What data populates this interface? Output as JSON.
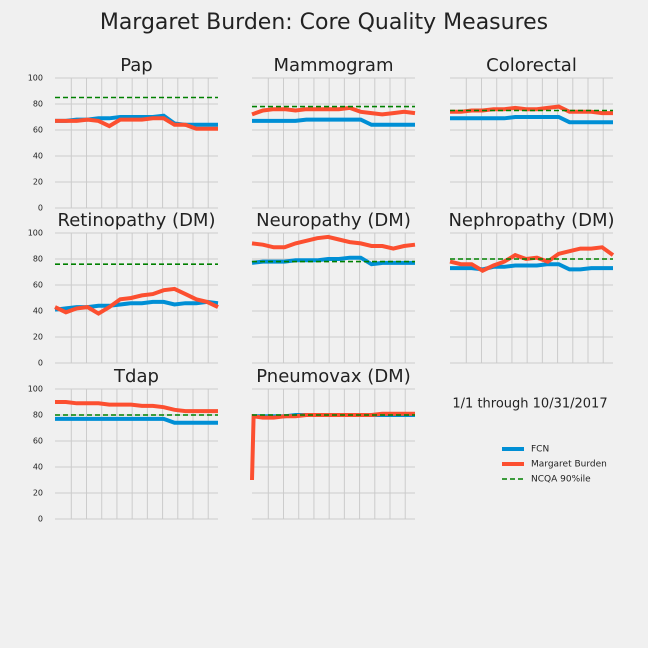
{
  "title": "Margaret Burden: Core Quality Measures",
  "annotation": "1/1 through 10/31/2017",
  "legend": [
    {
      "name": "FCN",
      "color": "#008fd5",
      "dashed": false
    },
    {
      "name": "Margaret Burden",
      "color": "#fc4f30",
      "dashed": false
    },
    {
      "name": "NCQA 90%ile",
      "color": "#008000",
      "dashed": true
    }
  ],
  "chart_data": [
    {
      "type": "line",
      "title": "Pap",
      "x": [
        0,
        20,
        40,
        60,
        80,
        100,
        120,
        140,
        160,
        180,
        200,
        220,
        240,
        260,
        280,
        300
      ],
      "xlim": [
        0,
        300
      ],
      "xticks": [
        30,
        58,
        86,
        114,
        142,
        170,
        198,
        226,
        254,
        282
      ],
      "ylim": [
        0,
        100
      ],
      "yticks": [
        0,
        20,
        40,
        60,
        80,
        100
      ],
      "grid": true,
      "benchmark": 85,
      "series": [
        {
          "values": [
            67,
            67,
            68,
            68,
            69,
            69,
            70,
            70,
            70,
            70,
            71,
            65,
            64,
            64,
            64,
            64
          ]
        },
        {
          "values": [
            67,
            67,
            67,
            68,
            67,
            63,
            68,
            68,
            68,
            69,
            69,
            64,
            64,
            61,
            61,
            61
          ]
        }
      ]
    },
    {
      "type": "line",
      "title": "Mammogram",
      "x": [
        0,
        20,
        40,
        60,
        80,
        100,
        120,
        140,
        160,
        180,
        200,
        220,
        240,
        260,
        280,
        300
      ],
      "xlim": [
        0,
        300
      ],
      "xticks": [
        30,
        58,
        86,
        114,
        142,
        170,
        198,
        226,
        254,
        282
      ],
      "ylim": [
        0,
        100
      ],
      "yticks": [
        0,
        20,
        40,
        60,
        80,
        100
      ],
      "grid": true,
      "benchmark": 78,
      "series": [
        {
          "values": [
            67,
            67,
            67,
            67,
            67,
            68,
            68,
            68,
            68,
            68,
            68,
            64,
            64,
            64,
            64,
            64
          ]
        },
        {
          "values": [
            72,
            75,
            76,
            76,
            75,
            76,
            76,
            76,
            76,
            77,
            74,
            73,
            72,
            73,
            74,
            73
          ]
        }
      ]
    },
    {
      "type": "line",
      "title": "Colorectal",
      "x": [
        0,
        20,
        40,
        60,
        80,
        100,
        120,
        140,
        160,
        180,
        200,
        220,
        240,
        260,
        280,
        300
      ],
      "xlim": [
        0,
        300
      ],
      "xticks": [
        30,
        58,
        86,
        114,
        142,
        170,
        198,
        226,
        254,
        282
      ],
      "ylim": [
        0,
        100
      ],
      "yticks": [
        0,
        20,
        40,
        60,
        80,
        100
      ],
      "grid": true,
      "benchmark": 75,
      "series": [
        {
          "values": [
            69,
            69,
            69,
            69,
            69,
            69,
            70,
            70,
            70,
            70,
            70,
            66,
            66,
            66,
            66,
            66
          ]
        },
        {
          "values": [
            74,
            74,
            75,
            75,
            76,
            76,
            77,
            76,
            76,
            77,
            78,
            74,
            74,
            74,
            73,
            73
          ]
        }
      ]
    },
    {
      "type": "line",
      "title": "Retinopathy (DM)",
      "x": [
        0,
        20,
        40,
        60,
        80,
        100,
        120,
        140,
        160,
        180,
        200,
        220,
        240,
        260,
        280,
        300
      ],
      "xlim": [
        0,
        300
      ],
      "xticks": [
        30,
        58,
        86,
        114,
        142,
        170,
        198,
        226,
        254,
        282
      ],
      "ylim": [
        0,
        100
      ],
      "yticks": [
        0,
        20,
        40,
        60,
        80,
        100
      ],
      "grid": true,
      "benchmark": 76,
      "series": [
        {
          "values": [
            41,
            42,
            43,
            43,
            44,
            44,
            45,
            46,
            46,
            47,
            47,
            45,
            46,
            46,
            47,
            46
          ]
        },
        {
          "values": [
            43,
            39,
            42,
            43,
            38,
            43,
            49,
            50,
            52,
            53,
            56,
            57,
            53,
            49,
            47,
            43
          ]
        }
      ]
    },
    {
      "type": "line",
      "title": "Neuropathy (DM)",
      "x": [
        0,
        20,
        40,
        60,
        80,
        100,
        120,
        140,
        160,
        180,
        200,
        220,
        240,
        260,
        280,
        300
      ],
      "xlim": [
        0,
        300
      ],
      "xticks": [
        30,
        58,
        86,
        114,
        142,
        170,
        198,
        226,
        254,
        282
      ],
      "ylim": [
        0,
        100
      ],
      "yticks": [
        0,
        20,
        40,
        60,
        80,
        100
      ],
      "grid": true,
      "benchmark": 78,
      "series": [
        {
          "values": [
            77,
            78,
            78,
            78,
            79,
            79,
            79,
            80,
            80,
            81,
            81,
            76,
            77,
            77,
            77,
            77
          ]
        },
        {
          "values": [
            92,
            91,
            89,
            89,
            92,
            94,
            96,
            97,
            95,
            93,
            92,
            90,
            90,
            88,
            90,
            91
          ]
        }
      ]
    },
    {
      "type": "line",
      "title": "Nephropathy (DM)",
      "x": [
        0,
        20,
        40,
        60,
        80,
        100,
        120,
        140,
        160,
        180,
        200,
        220,
        240,
        260,
        280,
        300
      ],
      "xlim": [
        0,
        300
      ],
      "xticks": [
        30,
        58,
        86,
        114,
        142,
        170,
        198,
        226,
        254,
        282
      ],
      "ylim": [
        0,
        100
      ],
      "yticks": [
        0,
        20,
        40,
        60,
        80,
        100
      ],
      "grid": true,
      "benchmark": 80,
      "series": [
        {
          "values": [
            73,
            73,
            73,
            72,
            74,
            74,
            75,
            75,
            75,
            76,
            76,
            72,
            72,
            73,
            73,
            73
          ]
        },
        {
          "values": [
            78,
            76,
            76,
            71,
            75,
            78,
            83,
            80,
            81,
            78,
            84,
            86,
            88,
            88,
            89,
            83
          ]
        }
      ]
    },
    {
      "type": "line",
      "title": "Tdap",
      "x": [
        0,
        20,
        40,
        60,
        80,
        100,
        120,
        140,
        160,
        180,
        200,
        220,
        240,
        260,
        280,
        300
      ],
      "xlim": [
        0,
        300
      ],
      "xticks": [
        30,
        58,
        86,
        114,
        142,
        170,
        198,
        226,
        254,
        282
      ],
      "ylim": [
        0,
        100
      ],
      "yticks": [
        0,
        20,
        40,
        60,
        80,
        100
      ],
      "grid": true,
      "benchmark": 80,
      "series": [
        {
          "values": [
            77,
            77,
            77,
            77,
            77,
            77,
            77,
            77,
            77,
            77,
            77,
            74,
            74,
            74,
            74,
            74
          ]
        },
        {
          "values": [
            90,
            90,
            89,
            89,
            89,
            88,
            88,
            88,
            87,
            87,
            86,
            84,
            83,
            83,
            83,
            83
          ]
        }
      ]
    },
    {
      "type": "line",
      "title": "Pneumovax (DM)",
      "x": [
        0,
        3,
        20,
        40,
        60,
        80,
        100,
        120,
        140,
        160,
        180,
        200,
        220,
        240,
        260,
        280,
        300
      ],
      "xlim": [
        0,
        300
      ],
      "xticks": [
        30,
        58,
        86,
        114,
        142,
        170,
        198,
        226,
        254,
        282
      ],
      "ylim": [
        0,
        100
      ],
      "yticks": [
        0,
        20,
        40,
        60,
        80,
        100
      ],
      "grid": true,
      "benchmark": 80,
      "series": [
        {
          "values": [
            79,
            79,
            79,
            79,
            79,
            80,
            80,
            80,
            80,
            80,
            80,
            80,
            80,
            80,
            80,
            80,
            80
          ]
        },
        {
          "values": [
            30,
            79,
            78,
            78,
            79,
            79,
            80,
            80,
            80,
            80,
            80,
            80,
            80,
            81,
            81,
            81,
            81
          ]
        }
      ]
    }
  ]
}
